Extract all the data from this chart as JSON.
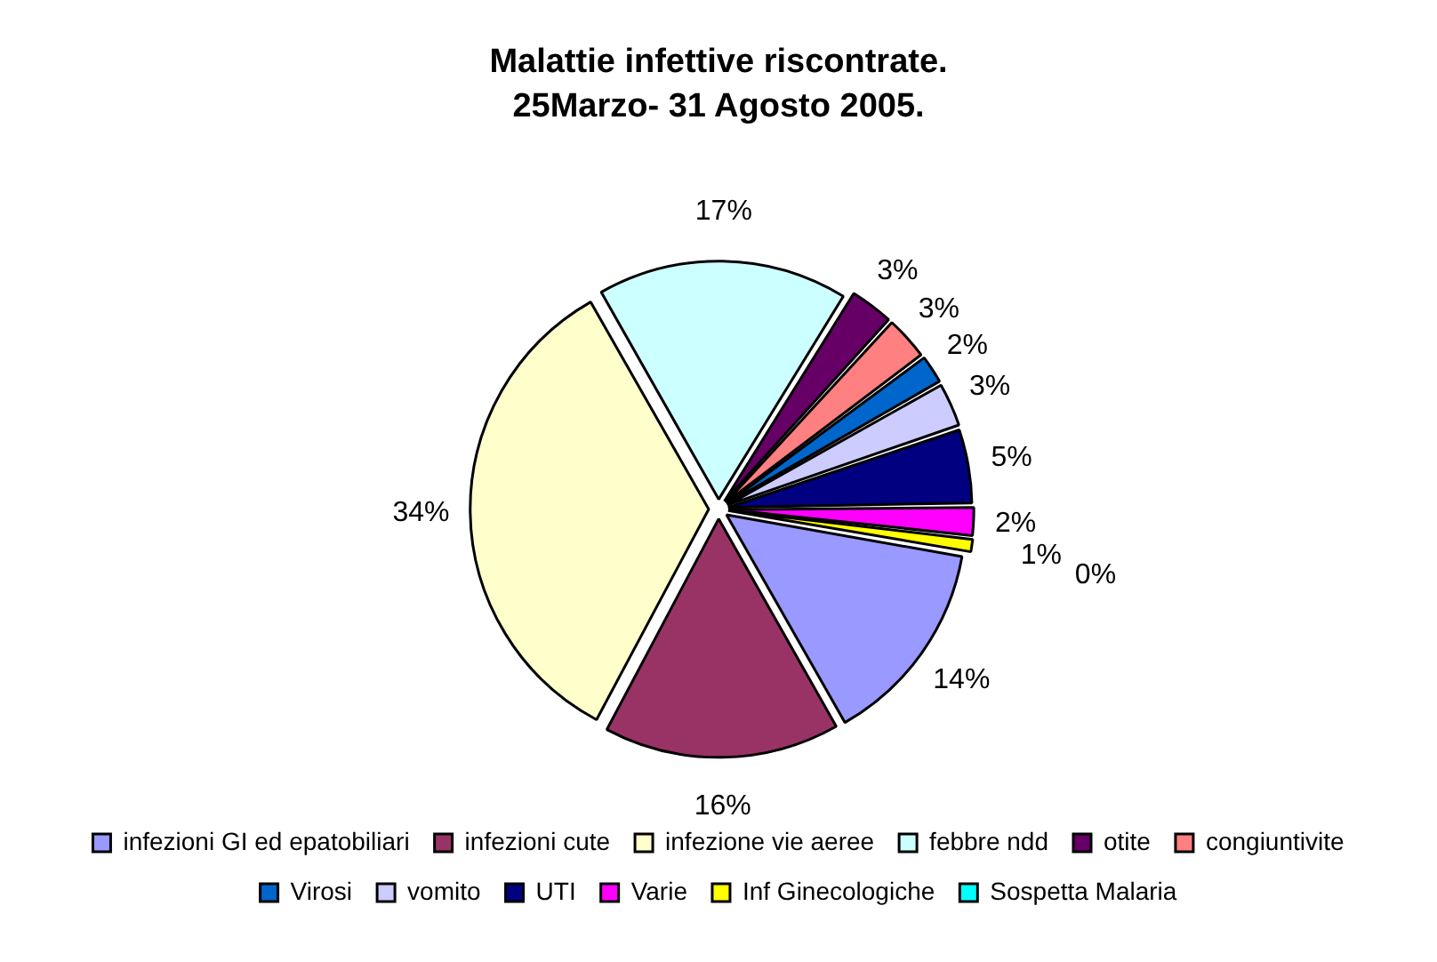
{
  "chart_data": {
    "type": "pie",
    "title": "Malattie infettive riscontrate.",
    "subtitle": "25Marzo- 31 Agosto 2005.",
    "categories": [
      "infezioni GI ed epatobiliari",
      "infezioni cute",
      "infezione vie aeree",
      "febbre ndd",
      "otite",
      "congiuntivite",
      "Virosi",
      "vomito",
      "UTI",
      "Varie",
      "Inf Ginecologiche",
      "Sospetta Malaria"
    ],
    "values": [
      14,
      16,
      34,
      17,
      3,
      3,
      2,
      3,
      5,
      2,
      1,
      0
    ],
    "value_labels": [
      "14%",
      "16%",
      "34%",
      "17%",
      "3%",
      "3%",
      "2%",
      "3%",
      "5%",
      "2%",
      "1%",
      "0%"
    ],
    "colors": [
      "#9999ff",
      "#993366",
      "#ffffcc",
      "#ccffff",
      "#660066",
      "#ff8080",
      "#0066cc",
      "#ccccff",
      "#000080",
      "#ff00ff",
      "#ffff00",
      "#00ffff"
    ],
    "legend": "bottom"
  }
}
